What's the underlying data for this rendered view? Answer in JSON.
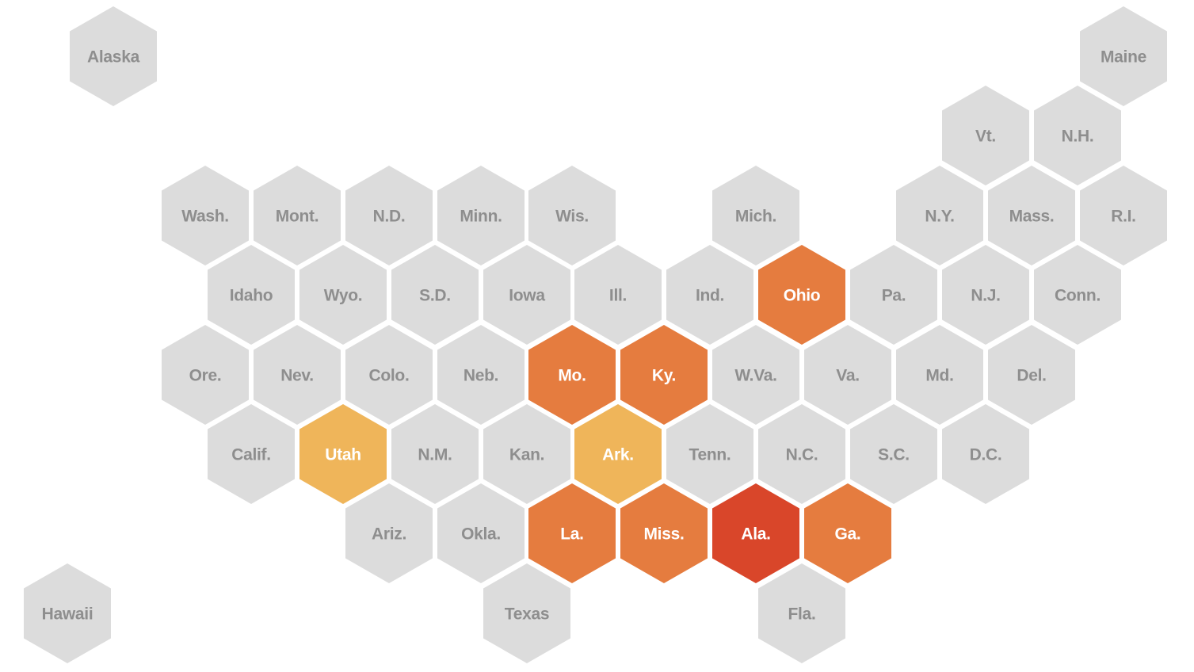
{
  "states": [
    {
      "label": "Alaska",
      "color": "#dcdcdc"
    },
    {
      "label": "Maine",
      "color": "#dcdcdc"
    },
    {
      "label": "Vt.",
      "color": "#dcdcdc"
    },
    {
      "label": "N.H.",
      "color": "#dcdcdc"
    },
    {
      "label": "Wash.",
      "color": "#dcdcdc"
    },
    {
      "label": "Mont.",
      "color": "#dcdcdc"
    },
    {
      "label": "N.D.",
      "color": "#dcdcdc"
    },
    {
      "label": "Minn.",
      "color": "#dcdcdc"
    },
    {
      "label": "Wis.",
      "color": "#dcdcdc"
    },
    {
      "label": "Mich.",
      "color": "#dcdcdc"
    },
    {
      "label": "N.Y.",
      "color": "#dcdcdc"
    },
    {
      "label": "Mass.",
      "color": "#dcdcdc"
    },
    {
      "label": "R.I.",
      "color": "#dcdcdc"
    },
    {
      "label": "Idaho",
      "color": "#dcdcdc"
    },
    {
      "label": "Wyo.",
      "color": "#dcdcdc"
    },
    {
      "label": "S.D.",
      "color": "#dcdcdc"
    },
    {
      "label": "Iowa",
      "color": "#dcdcdc"
    },
    {
      "label": "Ill.",
      "color": "#dcdcdc"
    },
    {
      "label": "Ind.",
      "color": "#dcdcdc"
    },
    {
      "label": "Ohio",
      "color": "#e57c3f"
    },
    {
      "label": "Pa.",
      "color": "#dcdcdc"
    },
    {
      "label": "N.J.",
      "color": "#dcdcdc"
    },
    {
      "label": "Conn.",
      "color": "#dcdcdc"
    },
    {
      "label": "Ore.",
      "color": "#dcdcdc"
    },
    {
      "label": "Nev.",
      "color": "#dcdcdc"
    },
    {
      "label": "Colo.",
      "color": "#dcdcdc"
    },
    {
      "label": "Neb.",
      "color": "#dcdcdc"
    },
    {
      "label": "Mo.",
      "color": "#e57c3f"
    },
    {
      "label": "Ky.",
      "color": "#e57c3f"
    },
    {
      "label": "W.Va.",
      "color": "#dcdcdc"
    },
    {
      "label": "Va.",
      "color": "#dcdcdc"
    },
    {
      "label": "Md.",
      "color": "#dcdcdc"
    },
    {
      "label": "Del.",
      "color": "#dcdcdc"
    },
    {
      "label": "Calif.",
      "color": "#dcdcdc"
    },
    {
      "label": "Utah",
      "color": "#efb55a"
    },
    {
      "label": "N.M.",
      "color": "#dcdcdc"
    },
    {
      "label": "Kan.",
      "color": "#dcdcdc"
    },
    {
      "label": "Ark.",
      "color": "#efb55a"
    },
    {
      "label": "Tenn.",
      "color": "#dcdcdc"
    },
    {
      "label": "N.C.",
      "color": "#dcdcdc"
    },
    {
      "label": "S.C.",
      "color": "#dcdcdc"
    },
    {
      "label": "D.C.",
      "color": "#dcdcdc"
    },
    {
      "label": "Ariz.",
      "color": "#dcdcdc"
    },
    {
      "label": "Okla.",
      "color": "#dcdcdc"
    },
    {
      "label": "La.",
      "color": "#e57c3f"
    },
    {
      "label": "Miss.",
      "color": "#e57c3f"
    },
    {
      "label": "Ala.",
      "color": "#d9462a"
    },
    {
      "label": "Ga.",
      "color": "#e57c3f"
    },
    {
      "label": "Hawaii",
      "color": "#dcdcdc"
    },
    {
      "label": "Texas",
      "color": "#dcdcdc"
    },
    {
      "label": "Fla.",
      "color": "#dcdcdc"
    }
  ]
}
